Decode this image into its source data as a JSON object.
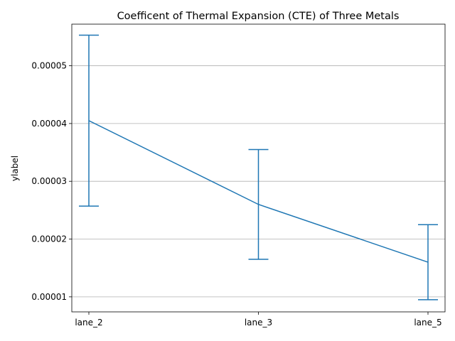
{
  "chart_data": {
    "type": "line",
    "title": "Coefficent of Thermal Expansion (CTE) of Three Metals",
    "xlabel": "",
    "ylabel": "ylabel",
    "categories": [
      "lane_2",
      "lane_3",
      "lane_5"
    ],
    "series": [
      {
        "values": [
          4.05e-05,
          2.6e-05,
          1.6e-05
        ],
        "errors": [
          1.48e-05,
          9.5e-06,
          6.5e-06
        ],
        "color": "#1f77b4"
      }
    ],
    "yticks": [
      1e-05,
      2e-05,
      3e-05,
      4e-05,
      5e-05
    ],
    "ytick_labels": [
      "0.00001",
      "0.00002",
      "0.00003",
      "0.00004",
      "0.00005"
    ],
    "ylim": [
      7.4e-06,
      5.72e-05
    ],
    "grid": "y",
    "legend": "none"
  }
}
